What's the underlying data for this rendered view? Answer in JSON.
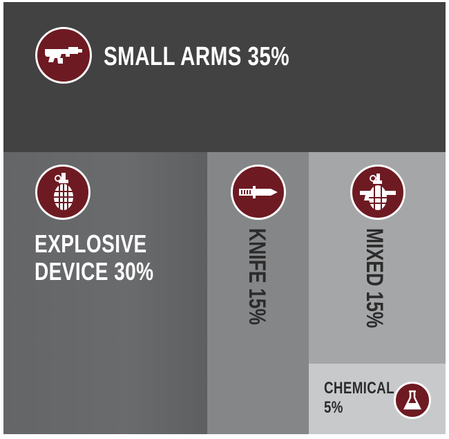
{
  "chart_data": {
    "type": "treemap",
    "items": [
      {
        "label": "SMALL ARMS 35%",
        "category": "SMALL ARMS",
        "value": 35,
        "color": "#424242",
        "icon": "rifle-icon"
      },
      {
        "label": "EXPLOSIVE DEVICE 30%",
        "line1": "EXPLOSIVE",
        "line2": "DEVICE 30%",
        "category": "EXPLOSIVE DEVICE",
        "value": 30,
        "color": "#646567",
        "icon": "grenade-icon"
      },
      {
        "label": "KNIFE 15%",
        "category": "KNIFE",
        "value": 15,
        "color": "#858688",
        "icon": "knife-icon"
      },
      {
        "label": "MIXED 15%",
        "category": "MIXED",
        "value": 15,
        "color": "#a5a6a8",
        "icon": "grenade-rifle-icon"
      },
      {
        "label": "CHEMICAL 5%",
        "line1": "CHEMICAL",
        "line2": "5%",
        "category": "CHEMICAL",
        "value": 5,
        "color": "#c8c9cb",
        "icon": "flask-icon"
      }
    ],
    "icon_color": "#6e1a22"
  }
}
